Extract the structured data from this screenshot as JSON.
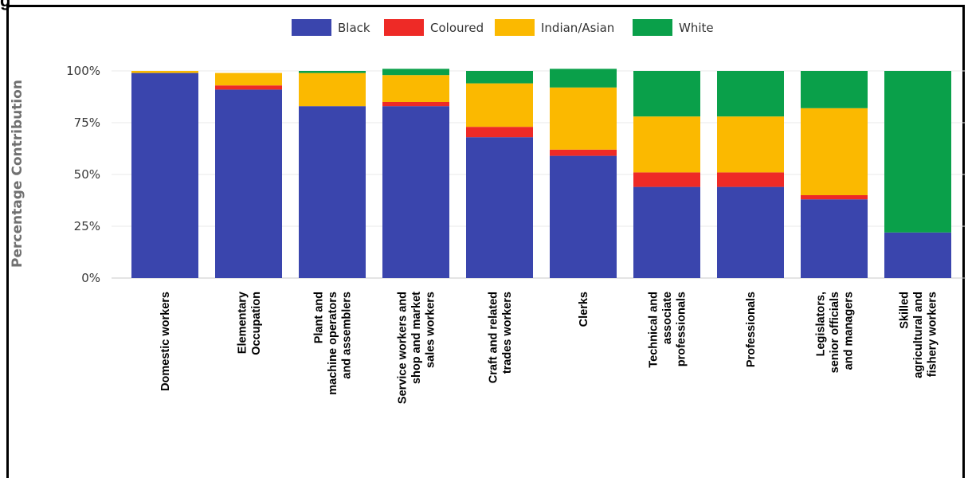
{
  "figure_label_fragment": "g",
  "chart_data": {
    "type": "bar",
    "stacked": true,
    "ylabel": "Percentage Contribution",
    "ylim": [
      0,
      100
    ],
    "yticks": [
      "0%",
      "25%",
      "50%",
      "75%",
      "100%"
    ],
    "legend_position": "top-center",
    "grid": true,
    "categories": [
      [
        "Domestic workers"
      ],
      [
        "Elementary",
        "Occupation"
      ],
      [
        "Plant and",
        "machine operators",
        "and assemblers"
      ],
      [
        "Service workers and",
        "shop and market",
        "sales workers"
      ],
      [
        "Craft and related",
        "trades workers"
      ],
      [
        "Clerks"
      ],
      [
        "Technical and",
        "associate",
        "professionals"
      ],
      [
        "Professionals"
      ],
      [
        "Legislators,",
        "senior officials",
        "and managers"
      ],
      [
        "Skilled",
        "agricultural and",
        "fishery workers"
      ]
    ],
    "series": [
      {
        "name": "Black",
        "color": "#3a45ad",
        "values": [
          99,
          91,
          83,
          83,
          68,
          59,
          44,
          44,
          38,
          22
        ]
      },
      {
        "name": "Coloured",
        "color": "#ee2a26",
        "values": [
          0,
          2,
          0,
          2,
          5,
          3,
          7,
          7,
          2,
          0
        ]
      },
      {
        "name": "Indian/Asian",
        "color": "#fbb900",
        "values": [
          1,
          6,
          16,
          13,
          21,
          30,
          27,
          27,
          42,
          0
        ]
      },
      {
        "name": "White",
        "color": "#0aa04a",
        "values": [
          0,
          0,
          1,
          3,
          6,
          9,
          22,
          22,
          18,
          78
        ]
      }
    ]
  }
}
